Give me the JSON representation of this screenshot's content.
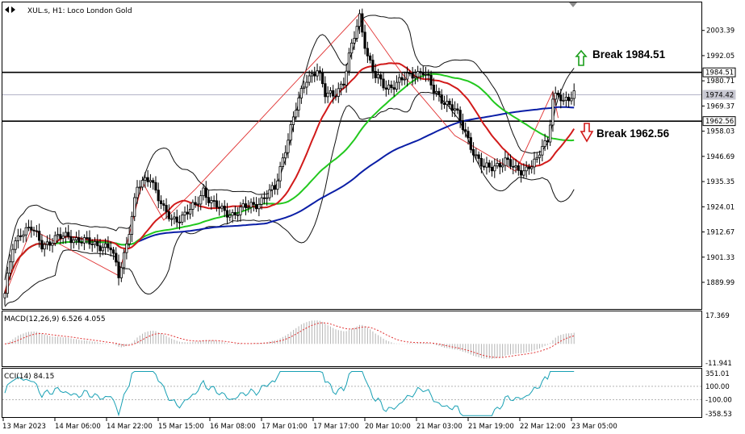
{
  "header": {
    "symbol_info": "XUL.s, H1:  Loco London Gold"
  },
  "chart_data": {
    "type": "candlestick",
    "title": "XUL.s, H1:  Loco London Gold",
    "ylim": [
      1878.0,
      2016.0
    ],
    "price_ticks": [
      "2003.39",
      "1992.05",
      "1980.71",
      "1969.37",
      "1958.03",
      "1946.69",
      "1935.35",
      "1924.01",
      "1912.67",
      "1901.33",
      "1889.99"
    ],
    "time_ticks": [
      "13 Mar 2023",
      "14 Mar 06:00",
      "14 Mar 22:00",
      "15 Mar 15:00",
      "16 Mar 08:00",
      "17 Mar 01:00",
      "17 Mar 17:00",
      "20 Mar 10:00",
      "21 Mar 03:00",
      "21 Mar 19:00",
      "22 Mar 12:00",
      "23 Mar 05:00"
    ],
    "levels": [
      {
        "value": 1984.51,
        "label": "1984.51",
        "annotation": "Break 1984.51",
        "arrow": "up",
        "color": "#1a9e1a"
      },
      {
        "value": 1962.56,
        "label": "1962.56",
        "annotation": "Break 1962.56",
        "arrow": "down",
        "color": "#d11a1a"
      }
    ],
    "current_price": "1974.42",
    "price_keys": [
      [
        0,
        1884
      ],
      [
        3,
        1906
      ],
      [
        6,
        1913
      ],
      [
        10,
        1914
      ],
      [
        14,
        1907
      ],
      [
        18,
        1909
      ],
      [
        24,
        1911
      ],
      [
        30,
        1908
      ],
      [
        36,
        1907
      ],
      [
        40,
        1905
      ],
      [
        43,
        1893
      ],
      [
        46,
        1908
      ],
      [
        50,
        1932
      ],
      [
        55,
        1938
      ],
      [
        60,
        1922
      ],
      [
        63,
        1918
      ],
      [
        67,
        1920
      ],
      [
        72,
        1924
      ],
      [
        75,
        1932
      ],
      [
        78,
        1926
      ],
      [
        82,
        1922
      ],
      [
        86,
        1921
      ],
      [
        90,
        1923
      ],
      [
        94,
        1925
      ],
      [
        98,
        1928
      ],
      [
        102,
        1932
      ],
      [
        106,
        1951
      ],
      [
        110,
        1968
      ],
      [
        114,
        1982
      ],
      [
        118,
        1986
      ],
      [
        121,
        1974
      ],
      [
        124,
        1975
      ],
      [
        128,
        1980
      ],
      [
        131,
        1996
      ],
      [
        134,
        2010
      ],
      [
        137,
        1992
      ],
      [
        140,
        1982
      ],
      [
        144,
        1978
      ],
      [
        149,
        1980
      ],
      [
        154,
        1984
      ],
      [
        158,
        1985
      ],
      [
        162,
        1976
      ],
      [
        166,
        1972
      ],
      [
        170,
        1967
      ],
      [
        174,
        1958
      ],
      [
        178,
        1946
      ],
      [
        181,
        1941
      ],
      [
        185,
        1943
      ],
      [
        189,
        1944
      ],
      [
        193,
        1941
      ],
      [
        197,
        1941
      ],
      [
        201,
        1944
      ],
      [
        203,
        1952
      ],
      [
        205,
        1954
      ],
      [
        207,
        1973
      ],
      [
        209,
        1974
      ],
      [
        211,
        1970
      ],
      [
        213,
        1973
      ],
      [
        215,
        1976
      ]
    ],
    "zigzag": [
      [
        0,
        1884
      ],
      [
        10,
        1914
      ],
      [
        43,
        1893
      ],
      [
        52,
        1935
      ],
      [
        60,
        1918
      ],
      [
        72,
        1932
      ],
      [
        134,
        2011
      ],
      [
        150,
        1984
      ],
      [
        170,
        1956
      ],
      [
        193,
        1940
      ],
      [
        207,
        1976
      ],
      [
        209,
        1964
      ]
    ],
    "series": [
      {
        "name": "MA 20",
        "color": "#d11a1a"
      },
      {
        "name": "MA 50",
        "color": "#22c81e"
      },
      {
        "name": "MA 100",
        "color": "#0a1ea6"
      },
      {
        "name": "Bollinger Bands",
        "color": "#111111"
      }
    ],
    "macd": {
      "label": "MACD(12,26,9) 6.526 4.055",
      "ticks": [
        "17.369",
        "-11.941"
      ],
      "ylim": [
        -11.941,
        17.369
      ]
    },
    "cci": {
      "label": "CCI(14) 84.15",
      "ticks": [
        "351.01",
        "100.00",
        "-100.00",
        "-358.53"
      ],
      "ylim": [
        -358.53,
        351.01
      ]
    }
  }
}
